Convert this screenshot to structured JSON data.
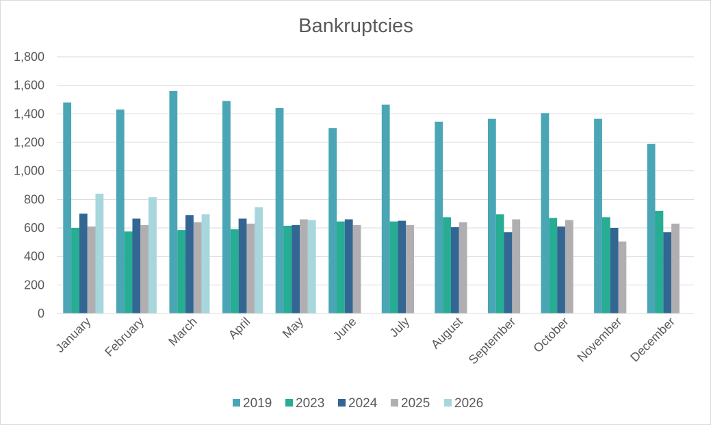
{
  "chart_data": {
    "type": "bar",
    "title": "Bankruptcies",
    "xlabel": "",
    "ylabel": "",
    "ylim": [
      0,
      1800
    ],
    "yticks": [
      0,
      200,
      400,
      600,
      800,
      1000,
      1200,
      1400,
      1600,
      1800
    ],
    "ytick_labels": [
      "0",
      "200",
      "400",
      "600",
      "800",
      "1,000",
      "1,200",
      "1,400",
      "1,600",
      "1,800"
    ],
    "grid": true,
    "legend_position": "bottom",
    "categories": [
      "January",
      "February",
      "March",
      "April",
      "May",
      "June",
      "July",
      "August",
      "September",
      "October",
      "November",
      "December"
    ],
    "series": [
      {
        "name": "2019",
        "color": "#4aa6b5",
        "values": [
          1480,
          1430,
          1560,
          1490,
          1440,
          1300,
          1465,
          1345,
          1365,
          1405,
          1365,
          1190
        ]
      },
      {
        "name": "2023",
        "color": "#26ad93",
        "values": [
          600,
          575,
          585,
          590,
          615,
          645,
          645,
          675,
          695,
          670,
          675,
          720
        ]
      },
      {
        "name": "2024",
        "color": "#336693",
        "values": [
          700,
          665,
          690,
          665,
          620,
          660,
          650,
          605,
          570,
          610,
          600,
          570
        ]
      },
      {
        "name": "2025",
        "color": "#b1aeb1",
        "values": [
          610,
          620,
          640,
          630,
          660,
          620,
          620,
          640,
          660,
          655,
          505,
          630
        ]
      },
      {
        "name": "2026",
        "color": "#a7d6dd",
        "values": [
          840,
          815,
          695,
          745,
          655,
          null,
          null,
          null,
          null,
          null,
          null,
          null
        ]
      }
    ]
  }
}
